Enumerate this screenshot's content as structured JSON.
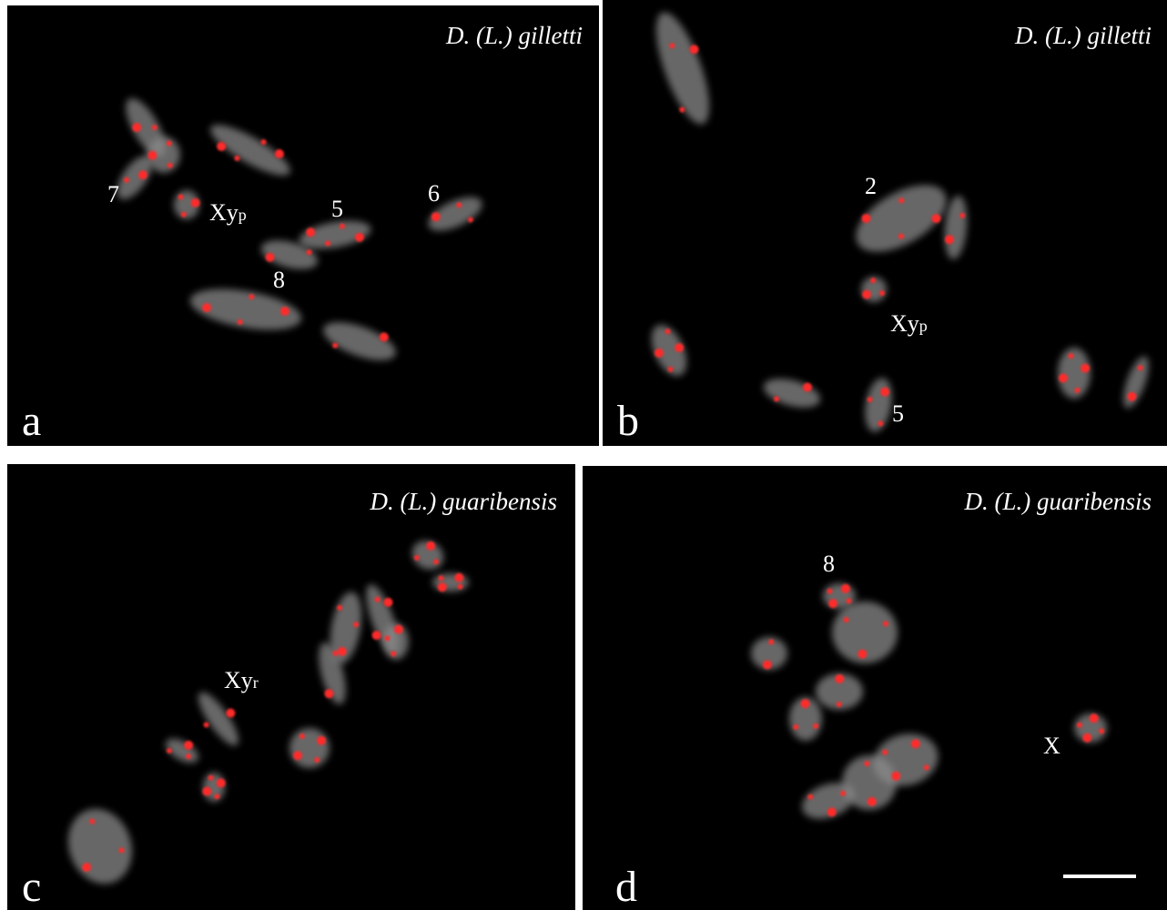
{
  "panels": [
    {
      "letter": "a",
      "species": "D. (L.) gilletti",
      "labels": [
        {
          "main": "7"
        },
        {
          "main": "Xy",
          "sub": "p"
        },
        {
          "main": "5"
        },
        {
          "main": "6"
        },
        {
          "main": "8"
        }
      ]
    },
    {
      "letter": "b",
      "species": "D. (L.) gilletti",
      "labels": [
        {
          "main": "2"
        },
        {
          "main": "Xy",
          "sub": "p"
        },
        {
          "main": "5"
        }
      ]
    },
    {
      "letter": "c",
      "species": "D. (L.) guaribensis",
      "labels": [
        {
          "main": "Xy",
          "sub": "r"
        }
      ]
    },
    {
      "letter": "d",
      "species": "D. (L.) guaribensis",
      "labels": [
        {
          "main": "8"
        },
        {
          "main": "X"
        }
      ]
    }
  ]
}
